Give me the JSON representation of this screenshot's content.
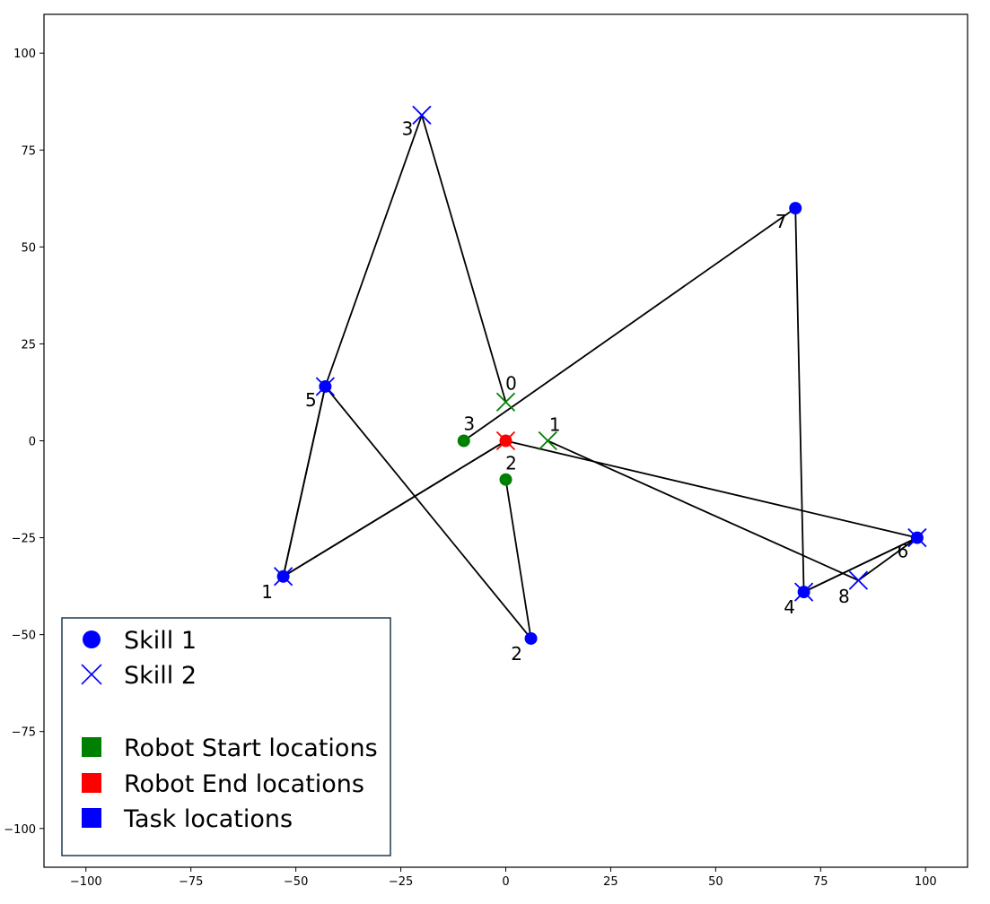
{
  "chart_data": {
    "type": "scatter",
    "title": "",
    "xlabel": "",
    "ylabel": "",
    "xlim": [
      -110,
      110
    ],
    "ylim": [
      -110,
      110
    ],
    "xticks": [
      -100,
      -75,
      -50,
      -25,
      0,
      25,
      50,
      75,
      100
    ],
    "yticks": [
      -100,
      -75,
      -50,
      -25,
      0,
      25,
      50,
      75,
      100
    ],
    "xtick_labels": [
      "−100",
      "−75",
      "−50",
      "−25",
      "0",
      "25",
      "50",
      "75",
      "100"
    ],
    "ytick_labels": [
      "−100",
      "−75",
      "−50",
      "−25",
      "0",
      "25",
      "50",
      "75",
      "100"
    ],
    "grid": false,
    "colors": {
      "start": "#008000",
      "end": "#ff0000",
      "task": "#0000ff",
      "path": "#000000"
    },
    "robot_start_locations": [
      {
        "x": 0,
        "y": 10,
        "marker": "x",
        "label": "0"
      },
      {
        "x": 10,
        "y": 0,
        "marker": "x",
        "label": "1"
      },
      {
        "x": 0,
        "y": -10,
        "marker": "o",
        "label": "2"
      },
      {
        "x": -10,
        "y": 0,
        "marker": "o",
        "label": "3"
      }
    ],
    "robot_end_locations": [
      {
        "x": 0,
        "y": 0,
        "marker": "o"
      },
      {
        "x": 0,
        "y": 0,
        "marker": "x"
      }
    ],
    "task_locations": [
      {
        "x": -53,
        "y": -35,
        "skill1": true,
        "skill2": true,
        "label": "1"
      },
      {
        "x": 6,
        "y": -51,
        "skill1": true,
        "skill2": false,
        "label": "2"
      },
      {
        "x": -20,
        "y": 84,
        "skill1": false,
        "skill2": true,
        "label": "3"
      },
      {
        "x": 71,
        "y": -39,
        "skill1": true,
        "skill2": true,
        "label": "4"
      },
      {
        "x": -43,
        "y": 14,
        "skill1": true,
        "skill2": true,
        "label": "5"
      },
      {
        "x": 98,
        "y": -25,
        "skill1": true,
        "skill2": true,
        "label": "6"
      },
      {
        "x": 69,
        "y": 60,
        "skill1": true,
        "skill2": false,
        "label": "7"
      },
      {
        "x": 84,
        "y": -36,
        "skill1": false,
        "skill2": true,
        "label": "8"
      }
    ],
    "paths": [
      [
        [
          0,
          10
        ],
        [
          -20,
          84
        ],
        [
          -43,
          14
        ],
        [
          -53,
          -35
        ],
        [
          0,
          0
        ]
      ],
      [
        [
          10,
          0
        ],
        [
          84,
          -36
        ],
        [
          98,
          -25
        ],
        [
          71,
          -39
        ],
        [
          69,
          60
        ],
        [
          -10,
          0
        ]
      ],
      [
        [
          0,
          -10
        ],
        [
          6,
          -51
        ],
        [
          -43,
          14
        ],
        [
          -53,
          -35
        ],
        [
          0,
          0
        ],
        [
          98,
          -25
        ],
        [
          71,
          -39
        ]
      ]
    ],
    "legend": {
      "placement": "lower-left",
      "entries": [
        {
          "marker": "circle",
          "color": "#0000ff",
          "label": "Skill 1"
        },
        {
          "marker": "x",
          "color": "#0000ff",
          "label": "Skill 2"
        },
        {
          "marker": "none",
          "color": "",
          "label": ""
        },
        {
          "marker": "square",
          "color": "#008000",
          "label": "Robot Start locations"
        },
        {
          "marker": "square",
          "color": "#ff0000",
          "label": "Robot End locations"
        },
        {
          "marker": "square",
          "color": "#0000ff",
          "label": "Task locations"
        }
      ]
    }
  }
}
